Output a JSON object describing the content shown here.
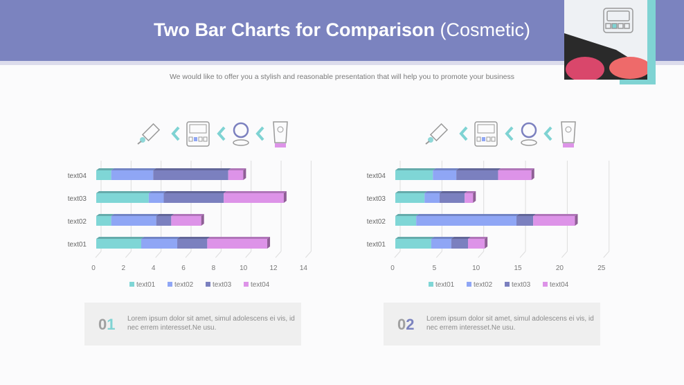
{
  "header": {
    "title_bold": "Two Bar Charts for Comparison",
    "title_light": "(Cosmetic)",
    "subtitle": "We would like to offer you a stylish and reasonable presentation that will help you to promote your business"
  },
  "colors": {
    "header": "#7b83bf",
    "accent_teal": "#7fd3d3",
    "text01": "#7fd6d6",
    "text02": "#8fa6f5",
    "text03": "#7b80bf",
    "text04": "#dd93e8"
  },
  "icons": [
    "brush-comb-icon",
    "chevron-left-icon",
    "eyeshadow-palette-icon",
    "chevron-left-icon",
    "compact-mirror-icon",
    "chevron-left-icon",
    "sunscreen-tube-icon"
  ],
  "chart_data": [
    {
      "type": "bar",
      "orientation": "horizontal",
      "stacked": true,
      "categories": [
        "text01",
        "text02",
        "text03",
        "text04"
      ],
      "series": [
        {
          "name": "text01",
          "values": [
            3.0,
            1.0,
            3.5,
            1.0
          ]
        },
        {
          "name": "text02",
          "values": [
            2.4,
            3.0,
            1.0,
            2.8
          ]
        },
        {
          "name": "text03",
          "values": [
            2.0,
            1.0,
            4.0,
            5.0
          ]
        },
        {
          "name": "text04",
          "values": [
            4.0,
            2.0,
            4.0,
            1.0
          ]
        }
      ],
      "xlim": [
        0,
        14
      ],
      "xticks": [
        0,
        2,
        4,
        6,
        8,
        10,
        12,
        14
      ],
      "grid": true,
      "legend": "bottom"
    },
    {
      "type": "bar",
      "orientation": "horizontal",
      "stacked": true,
      "categories": [
        "text01",
        "text02",
        "text03",
        "text04"
      ],
      "series": [
        {
          "name": "text01",
          "values": [
            4.3,
            2.5,
            3.5,
            4.5
          ]
        },
        {
          "name": "text02",
          "values": [
            2.4,
            12.0,
            1.8,
            2.8
          ]
        },
        {
          "name": "text03",
          "values": [
            2.0,
            2.0,
            3.0,
            5.0
          ]
        },
        {
          "name": "text04",
          "values": [
            2.0,
            5.0,
            1.0,
            4.0
          ]
        }
      ],
      "xlim": [
        0,
        25
      ],
      "xticks": [
        0,
        5,
        10,
        15,
        20,
        25
      ],
      "grid": true,
      "legend": "bottom"
    }
  ],
  "boxes": [
    {
      "num_a": "0",
      "num_b": "1",
      "text": "Lorem ipsum dolor sit amet, simul adolescens ei vis, id nec errem interesset.Ne usu."
    },
    {
      "num_a": "0",
      "num_b": "2",
      "text": "Lorem ipsum dolor sit amet, simul adolescens ei vis, id nec errem interesset.Ne usu."
    }
  ]
}
